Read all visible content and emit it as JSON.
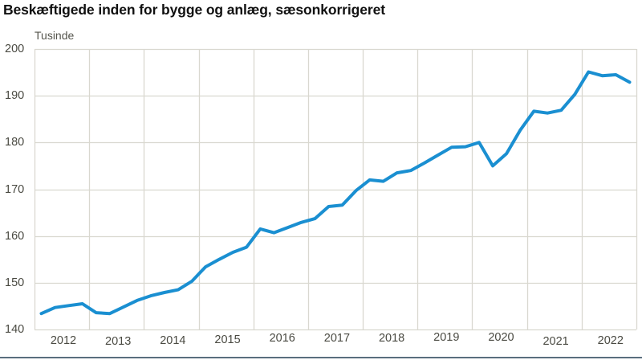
{
  "chart": {
    "title": "Beskæftigede inden for bygge og anlæg, sæsonkorrigeret",
    "unit_label": "Tusinde",
    "y_ticks": [
      "200",
      "190",
      "180",
      "170",
      "160",
      "150",
      "140"
    ],
    "x_ticks": [
      "2012",
      "2013",
      "2014",
      "2015",
      "2016",
      "2017",
      "2018",
      "2019",
      "2020",
      "2021",
      "2022"
    ],
    "line_color": "#1a8fd1",
    "grid_color": "#d9d8d0"
  },
  "chart_data": {
    "type": "line",
    "title": "Beskæftigede inden for bygge og anlæg, sæsonkorrigeret",
    "xlabel": "",
    "ylabel": "Tusinde",
    "ylim": [
      140,
      200
    ],
    "yticks": [
      140,
      150,
      160,
      170,
      180,
      190,
      200
    ],
    "grid": true,
    "legend": null,
    "frequency": "quarterly",
    "categories": [
      "2012",
      "2013",
      "2014",
      "2015",
      "2016",
      "2017",
      "2018",
      "2019",
      "2020",
      "2021",
      "2022"
    ],
    "x": [
      "2012Q1",
      "2012Q2",
      "2012Q3",
      "2012Q4",
      "2013Q1",
      "2013Q2",
      "2013Q3",
      "2013Q4",
      "2014Q1",
      "2014Q2",
      "2014Q3",
      "2014Q4",
      "2015Q1",
      "2015Q2",
      "2015Q3",
      "2015Q4",
      "2016Q1",
      "2016Q2",
      "2016Q3",
      "2016Q4",
      "2017Q1",
      "2017Q2",
      "2017Q3",
      "2017Q4",
      "2018Q1",
      "2018Q2",
      "2018Q3",
      "2018Q4",
      "2019Q1",
      "2019Q2",
      "2019Q3",
      "2019Q4",
      "2020Q1",
      "2020Q2",
      "2020Q3",
      "2020Q4",
      "2021Q1",
      "2021Q2",
      "2021Q3",
      "2021Q4",
      "2022Q1",
      "2022Q2",
      "2022Q3",
      "2022Q4"
    ],
    "series": [
      {
        "name": "Beskæftigede",
        "values": [
          143.4,
          144.7,
          145.1,
          145.5,
          143.6,
          143.4,
          144.8,
          146.2,
          147.2,
          147.9,
          148.5,
          150.3,
          153.4,
          155.0,
          156.5,
          157.6,
          161.5,
          160.7,
          161.8,
          162.9,
          163.7,
          166.3,
          166.6,
          169.7,
          172.0,
          171.7,
          173.5,
          174.0,
          175.6,
          177.3,
          179.0,
          179.1,
          180.0,
          175.0,
          177.6,
          182.6,
          186.7,
          186.3,
          186.9,
          190.3,
          195.1,
          194.3,
          194.5,
          192.9
        ]
      }
    ]
  }
}
